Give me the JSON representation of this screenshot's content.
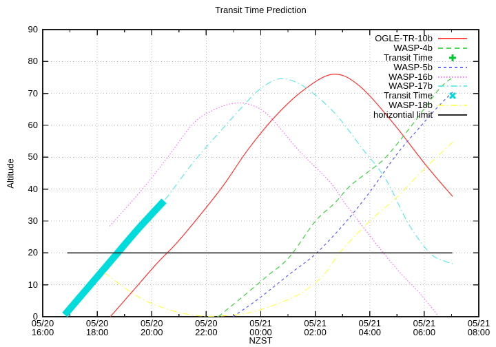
{
  "title": "Transit Time Prediction",
  "axes": {
    "xlabel": "NZST",
    "ylabel": "Altitude",
    "y_ticks": [
      "0",
      "10",
      "20",
      "30",
      "40",
      "50",
      "60",
      "70",
      "80",
      "90"
    ],
    "x_ticks": [
      {
        "date": "05/20",
        "time": "16:00"
      },
      {
        "date": "05/20",
        "time": "18:00"
      },
      {
        "date": "05/20",
        "time": "20:00"
      },
      {
        "date": "05/20",
        "time": "22:00"
      },
      {
        "date": "05/21",
        "time": "00:00"
      },
      {
        "date": "05/21",
        "time": "02:00"
      },
      {
        "date": "05/21",
        "time": "04:00"
      },
      {
        "date": "05/21",
        "time": "06:00"
      },
      {
        "date": "05/21",
        "time": "08:00"
      }
    ]
  },
  "chart_data": {
    "type": "line",
    "title": "Transit Time Prediction",
    "xlabel": "NZST",
    "ylabel": "Altitude",
    "ylim": [
      0,
      90
    ],
    "x_axis_hours_from_first_tick": [
      0,
      16
    ],
    "grid": true,
    "legend_position": "top-right",
    "colors": {
      "grid": "#b8b8b8",
      "axis": "#1a1a1a"
    },
    "series": [
      {
        "name": "OGLE-TR-10b",
        "color": "#ff3030",
        "style": "solid",
        "width": 1.2,
        "points": [
          [
            2.48,
            0
          ],
          [
            3.3,
            8
          ],
          [
            4.2,
            16.8
          ],
          [
            5.05,
            24.4
          ],
          [
            6.52,
            39.9
          ],
          [
            7.5,
            52
          ],
          [
            8.5,
            62.5
          ],
          [
            9.55,
            70.9
          ],
          [
            10.64,
            76
          ],
          [
            11.6,
            72.5
          ],
          [
            12.84,
            60.9
          ],
          [
            14.06,
            47.5
          ],
          [
            15.04,
            37.7
          ]
        ]
      },
      {
        "name": "WASP-4b",
        "color": "#3fd13f",
        "style": "dashed",
        "width": 1.2,
        "points": [
          [
            6.44,
            0
          ],
          [
            7.3,
            6
          ],
          [
            8.2,
            12.5
          ],
          [
            9.05,
            18.7
          ],
          [
            10,
            29.9
          ],
          [
            10.7,
            35.5
          ],
          [
            11.28,
            41
          ],
          [
            12,
            45.8
          ],
          [
            12.59,
            50
          ],
          [
            13.5,
            59.5
          ],
          [
            14.53,
            71.2
          ],
          [
            15.04,
            75
          ]
        ]
      },
      {
        "name": "Transit Time",
        "color": "#00c832",
        "style": "marker",
        "marker": "plus",
        "points": []
      },
      {
        "name": "WASP-5b",
        "color": "#5a5aff",
        "style": "dashed-short",
        "width": 1.2,
        "points": [
          [
            6.98,
            0
          ],
          [
            7.9,
            5.5
          ],
          [
            9.05,
            13.3
          ],
          [
            10,
            19.6
          ],
          [
            11,
            28.5
          ],
          [
            11.95,
            38.5
          ],
          [
            13,
            51
          ],
          [
            13.9,
            60
          ],
          [
            14.5,
            65.8
          ],
          [
            15.04,
            70.4
          ]
        ]
      },
      {
        "name": "WASP-16b",
        "color": "#ff6aff",
        "style": "dotted",
        "width": 1.2,
        "points": [
          [
            2.46,
            28.4
          ],
          [
            3.54,
            38.8
          ],
          [
            4.5,
            49
          ],
          [
            5.51,
            60.4
          ],
          [
            6.2,
            64.5
          ],
          [
            6.94,
            66.8
          ],
          [
            7.6,
            66.5
          ],
          [
            8.3,
            63
          ],
          [
            9.39,
            52.2
          ],
          [
            10.56,
            42
          ],
          [
            11.14,
            35
          ],
          [
            12.5,
            20
          ],
          [
            13.2,
            13
          ],
          [
            13.85,
            7.2
          ],
          [
            14.51,
            0.3
          ]
        ]
      },
      {
        "name": "WASP-17b",
        "color": "#5fe8e8",
        "style": "dashdot",
        "width": 1.2,
        "points": [
          [
            0.81,
            0.6
          ],
          [
            1.7,
            9.5
          ],
          [
            2.6,
            18.5
          ],
          [
            3.5,
            27.5
          ],
          [
            4.45,
            36.3
          ],
          [
            5.51,
            48.2
          ],
          [
            6.65,
            59.4
          ],
          [
            7.4,
            66.5
          ],
          [
            7.95,
            71.2
          ],
          [
            8.63,
            74.5
          ],
          [
            9.3,
            73.5
          ],
          [
            10,
            69.5
          ],
          [
            10.8,
            63
          ],
          [
            11.7,
            53
          ],
          [
            12.58,
            43.2
          ],
          [
            13.43,
            29
          ],
          [
            14.2,
            20
          ],
          [
            14.69,
            17.6
          ],
          [
            15.04,
            16.6
          ]
        ]
      },
      {
        "name": "Transit Time",
        "color": "#00dcdc",
        "style": "band",
        "marker": "x",
        "width": 10,
        "points": [
          [
            0.81,
            0.6
          ],
          [
            1.7,
            9.5
          ],
          [
            2.6,
            18.5
          ],
          [
            3.5,
            27.5
          ],
          [
            4.45,
            36.3
          ]
        ]
      },
      {
        "name": "WASP-18b",
        "color": "#ffff4d",
        "style": "dashdot",
        "width": 1.2,
        "points": [
          [
            2.27,
            13.8
          ],
          [
            3.1,
            8.5
          ],
          [
            3.9,
            4.5
          ],
          [
            4.97,
            1.4
          ],
          [
            5.9,
            0.2
          ],
          [
            6.8,
            0.4
          ],
          [
            7.62,
            1.3
          ],
          [
            8.6,
            4
          ],
          [
            9.5,
            7.5
          ],
          [
            10.3,
            13
          ],
          [
            10.94,
            20.5
          ],
          [
            12,
            30
          ],
          [
            13,
            37.5
          ],
          [
            13.93,
            45.7
          ],
          [
            15.04,
            54.7
          ]
        ]
      },
      {
        "name": "horizontial limit",
        "color": "#2a2a2a",
        "style": "solid",
        "width": 1.6,
        "points": [
          [
            0.9,
            20
          ],
          [
            15.03,
            20
          ]
        ]
      }
    ]
  }
}
